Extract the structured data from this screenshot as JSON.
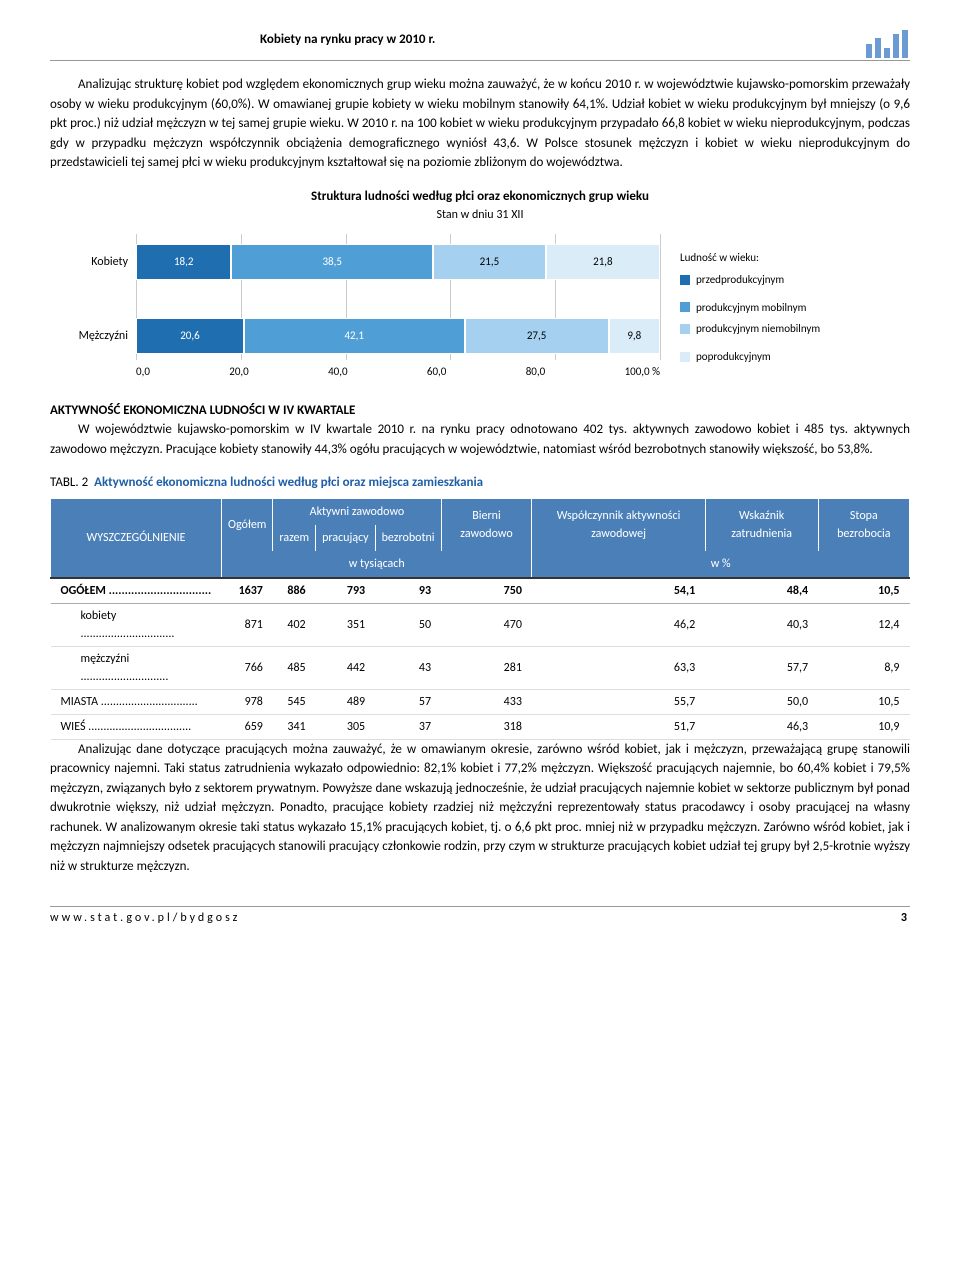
{
  "header": {
    "title": "Kobiety na rynku pracy w 2010 r."
  },
  "paragraphs": {
    "p1": "Analizując strukturę kobiet pod względem ekonomicznych grup wieku można zauważyć, że w końcu 2010 r. w województwie kujawsko-pomorskim przeważały osoby w wieku produkcyjnym (60,0%). W omawianej grupie kobiety w wieku mobilnym stanowiły 64,1%. Udział kobiet w wieku produkcyjnym był mniejszy (o 9,6 pkt proc.) niż udział mężczyzn w tej samej grupie wieku. W 2010 r. na 100 kobiet w wieku produkcyjnym przypadało 66,8 kobiet w wieku nieprodukcyjnym, podczas gdy w przypadku mężczyzn współczynnik obciążenia demograficznego wyniósł 43,6. W Polsce stosunek mężczyzn i kobiet w wieku nieprodukcyjnym do przedstawicieli tej samej płci w wieku produkcyjnym kształtował się na poziomie zbliżonym do województwa.",
    "p2": "W województwie kujawsko-pomorskim w IV kwartale 2010 r. na rynku pracy odnotowano 402 tys. aktywnych zawodowo kobiet i 485 tys. aktywnych zawodowo mężczyzn. Pracujące kobiety stanowiły 44,3% ogółu pracujących w województwie, natomiast wśród bezrobotnych stanowiły większość, bo 53,8%.",
    "p3": "Analizując dane dotyczące pracujących można zauważyć, że w omawianym okresie, zarówno wśród kobiet, jak i mężczyzn, przeważającą grupę stanowili pracownicy najemni. Taki status zatrudnienia wykazało odpowiednio: 82,1% kobiet i 77,2% mężczyzn. Większość pracujących najemnie, bo 60,4% kobiet i 79,5% mężczyzn, związanych było z sektorem prywatnym. Powyższe dane wskazują jednocześnie, że udział pracujących najemnie kobiet w sektorze publicznym był ponad dwukrotnie większy, niż udział mężczyzn. Ponadto, pracujące kobiety rzadziej niż mężczyźni reprezentowały status pracodawcy i osoby pracującej na własny rachunek. W analizowanym okresie taki status wykazało 15,1% pracujących kobiet, tj. o 6,6 pkt proc. mniej niż w przypadku mężczyzn. Zarówno wśród kobiet, jak i mężczyzn najmniejszy odsetek pracujących stanowili pracujący członkowie rodzin, przy czym w strukturze pracujących kobiet udział tej grupy był 2,5-krotnie wyższy niż w strukturze mężczyzn."
  },
  "chart": {
    "title": "Struktura ludności według płci oraz ekonomicznych grup wieku",
    "subtitle": "Stan w dniu 31 XII",
    "categories": [
      "Kobiety",
      "Mężczyźni"
    ],
    "series_labels": [
      "przedprodukcyjnym",
      "produkcyjnym mobilnym",
      "produkcyjnym niemobilnym",
      "poprodukcyjnym"
    ],
    "legend_title": "Ludność w wieku:",
    "colors": [
      "#1f6fb0",
      "#4f9fd6",
      "#a6d0ef",
      "#d9ecf8"
    ],
    "text_colors": [
      "#ffffff",
      "#ffffff",
      "#000000",
      "#000000"
    ],
    "values": [
      [
        18.2,
        38.5,
        21.5,
        21.8
      ],
      [
        20.6,
        42.1,
        27.5,
        9.8
      ]
    ],
    "xmax": 100,
    "xtick_step": 20,
    "xticks": [
      "0,0",
      "20,0",
      "40,0",
      "60,0",
      "80,0",
      "100,0"
    ],
    "x_unit": "%"
  },
  "section2_title": "AKTYWNOŚĆ EKONOMICZNA LUDNOŚCI W IV KWARTALE",
  "table": {
    "caption_num": "TABL. 2",
    "caption_text": "Aktywność ekonomiczna ludności według płci oraz miejsca zamieszkania",
    "header": {
      "c1": "WYSZCZEGÓLNIENIE",
      "c2": "Ogółem",
      "c3": "Aktywni zawodowo",
      "c3a": "razem",
      "c3b": "pracujący",
      "c3c": "bezrobotni",
      "c4": "Bierni zawodowo",
      "c5": "Współczynnik aktywności zawodowej",
      "c6": "Wskaźnik zatrudnienia",
      "c7": "Stopa bezrobocia",
      "u1": "w tysiącach",
      "u2": "w %"
    },
    "rows": [
      {
        "label": "OGÓŁEM",
        "cls": "ogolem",
        "v": [
          "1637",
          "886",
          "793",
          "93",
          "750",
          "54,1",
          "48,4",
          "10,5"
        ]
      },
      {
        "label": "kobiety",
        "cls": "sub",
        "v": [
          "871",
          "402",
          "351",
          "50",
          "470",
          "46,2",
          "40,3",
          "12,4"
        ]
      },
      {
        "label": "mężczyźni",
        "cls": "sub",
        "v": [
          "766",
          "485",
          "442",
          "43",
          "281",
          "63,3",
          "57,7",
          "8,9"
        ]
      },
      {
        "label": "MIASTA",
        "cls": "",
        "v": [
          "978",
          "545",
          "489",
          "57",
          "433",
          "55,7",
          "50,0",
          "10,5"
        ]
      },
      {
        "label": "WIEŚ",
        "cls": "",
        "v": [
          "659",
          "341",
          "305",
          "37",
          "318",
          "51,7",
          "46,3",
          "10,9"
        ]
      }
    ]
  },
  "footer": {
    "url": "www.stat.gov.pl/bydgosz",
    "page": "3"
  }
}
